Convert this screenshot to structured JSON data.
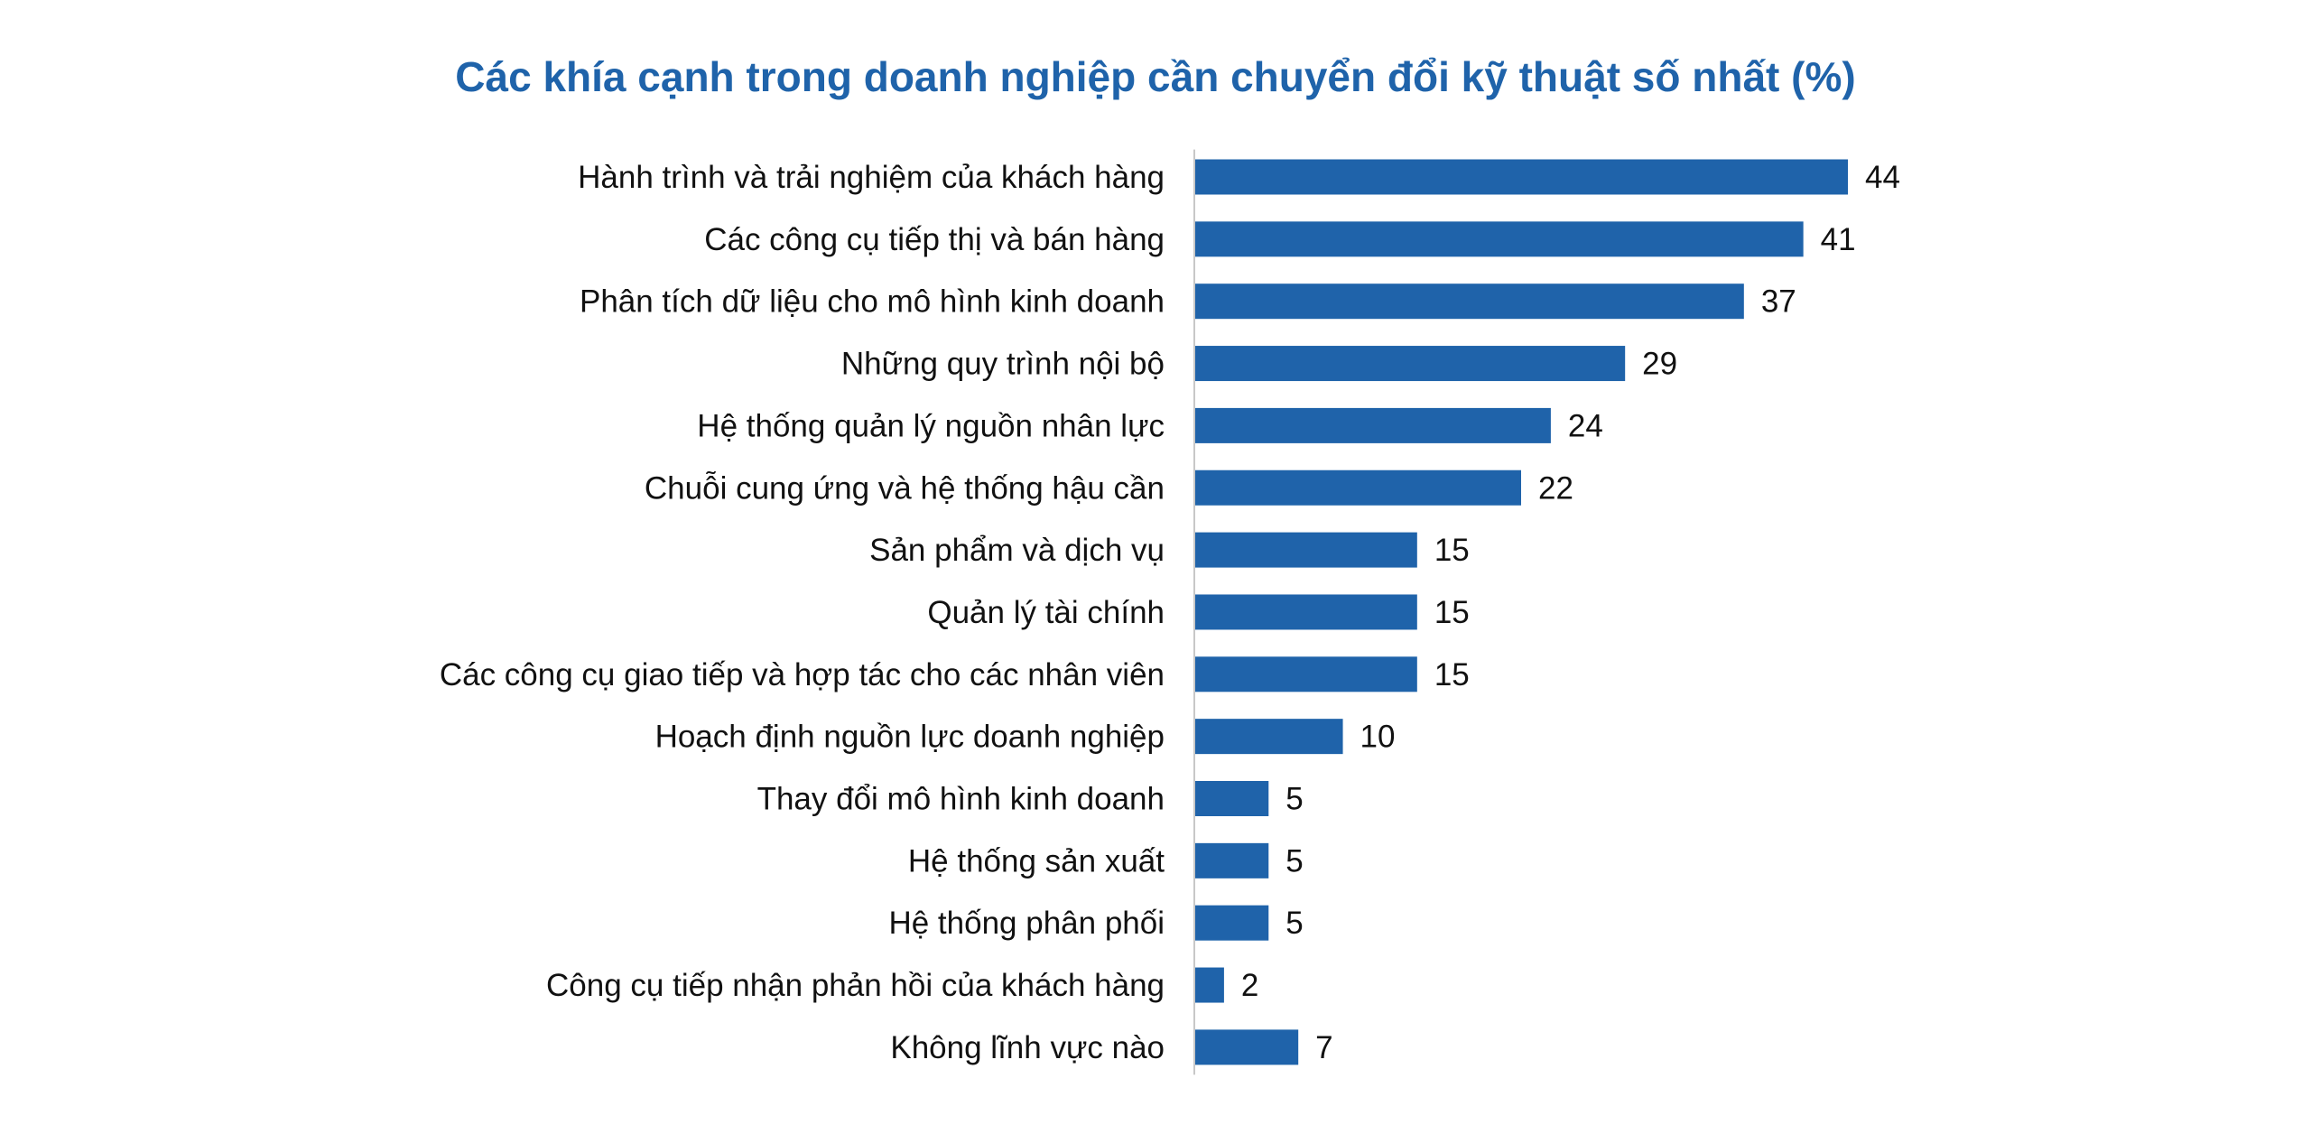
{
  "chart_data": {
    "type": "bar",
    "orientation": "horizontal",
    "title": "Các khía cạnh trong doanh nghiệp cần chuyển đổi kỹ thuật số nhất (%)",
    "xlabel": "",
    "ylabel": "",
    "categories": [
      "Hành trình và trải nghiệm của khách hàng",
      "Các công cụ tiếp thị và bán hàng",
      "Phân tích dữ liệu cho mô hình kinh doanh",
      "Những quy trình nội bộ",
      "Hệ thống quản lý nguồn nhân lực",
      "Chuỗi cung ứng và hệ thống hậu cần",
      "Sản phẩm và dịch vụ",
      "Quản lý tài chính",
      "Các công cụ giao tiếp và hợp tác cho các nhân viên",
      "Hoạch định nguồn lực doanh nghiệp",
      "Thay đổi mô hình kinh doanh",
      "Hệ thống sản xuất",
      "Hệ thống phân phối",
      "Công cụ tiếp nhận phản hồi của khách hàng",
      "Không lĩnh vực nào"
    ],
    "values": [
      44,
      41,
      37,
      29,
      24,
      22,
      15,
      15,
      15,
      10,
      5,
      5,
      5,
      2,
      7
    ],
    "data_labels": [
      "44",
      "41",
      "37",
      "29",
      "24",
      "22",
      "15",
      "15",
      "15",
      "10",
      "5",
      "5",
      "5",
      "2",
      "7"
    ],
    "xlim": [
      0,
      44
    ],
    "grid": false,
    "legend": "none",
    "bar_color": "#1f63aa",
    "axis_color": "#c8c8c8"
  }
}
